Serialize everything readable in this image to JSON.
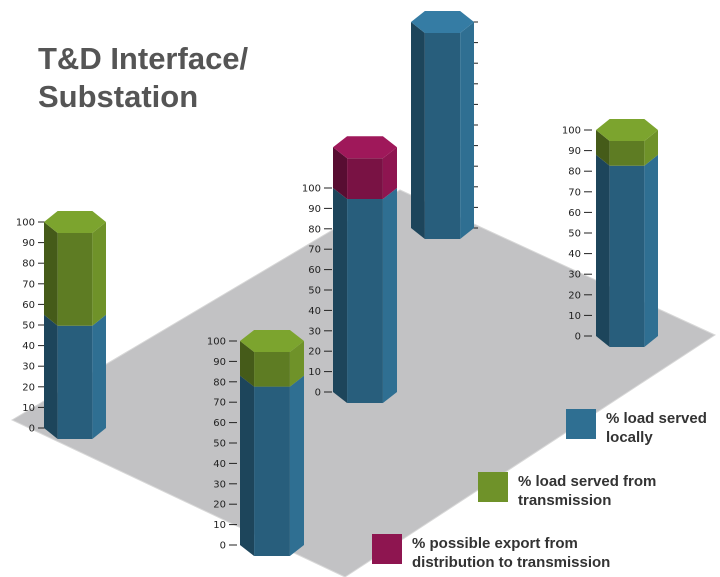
{
  "title": {
    "line1": "T&D Interface/",
    "line2": "Substation"
  },
  "colors": {
    "local": "#2f6f92",
    "transmission": "#6f9229",
    "export": "#8e1550",
    "platform": "#c2c2c4"
  },
  "axis_ticks": [
    0,
    10,
    20,
    30,
    40,
    50,
    60,
    70,
    80,
    90,
    100
  ],
  "columns": [
    {
      "local": 55,
      "transmission": 45,
      "export": 0
    },
    {
      "local": 83,
      "transmission": 17,
      "export": 0
    },
    {
      "local": 100,
      "transmission": 0,
      "export": 20
    },
    {
      "local": 100,
      "transmission": 0,
      "export": 0
    },
    {
      "local": 88,
      "transmission": 12,
      "export": 0
    }
  ],
  "legend": [
    {
      "label_line1": "% load served",
      "label_line2": "locally",
      "color": "#2f6f92"
    },
    {
      "label_line1": "% load served from",
      "label_line2": "transmission",
      "color": "#6f9229"
    },
    {
      "label_line1": "% possible export from",
      "label_line2": "distribution to transmission",
      "color": "#8e1550"
    }
  ]
}
